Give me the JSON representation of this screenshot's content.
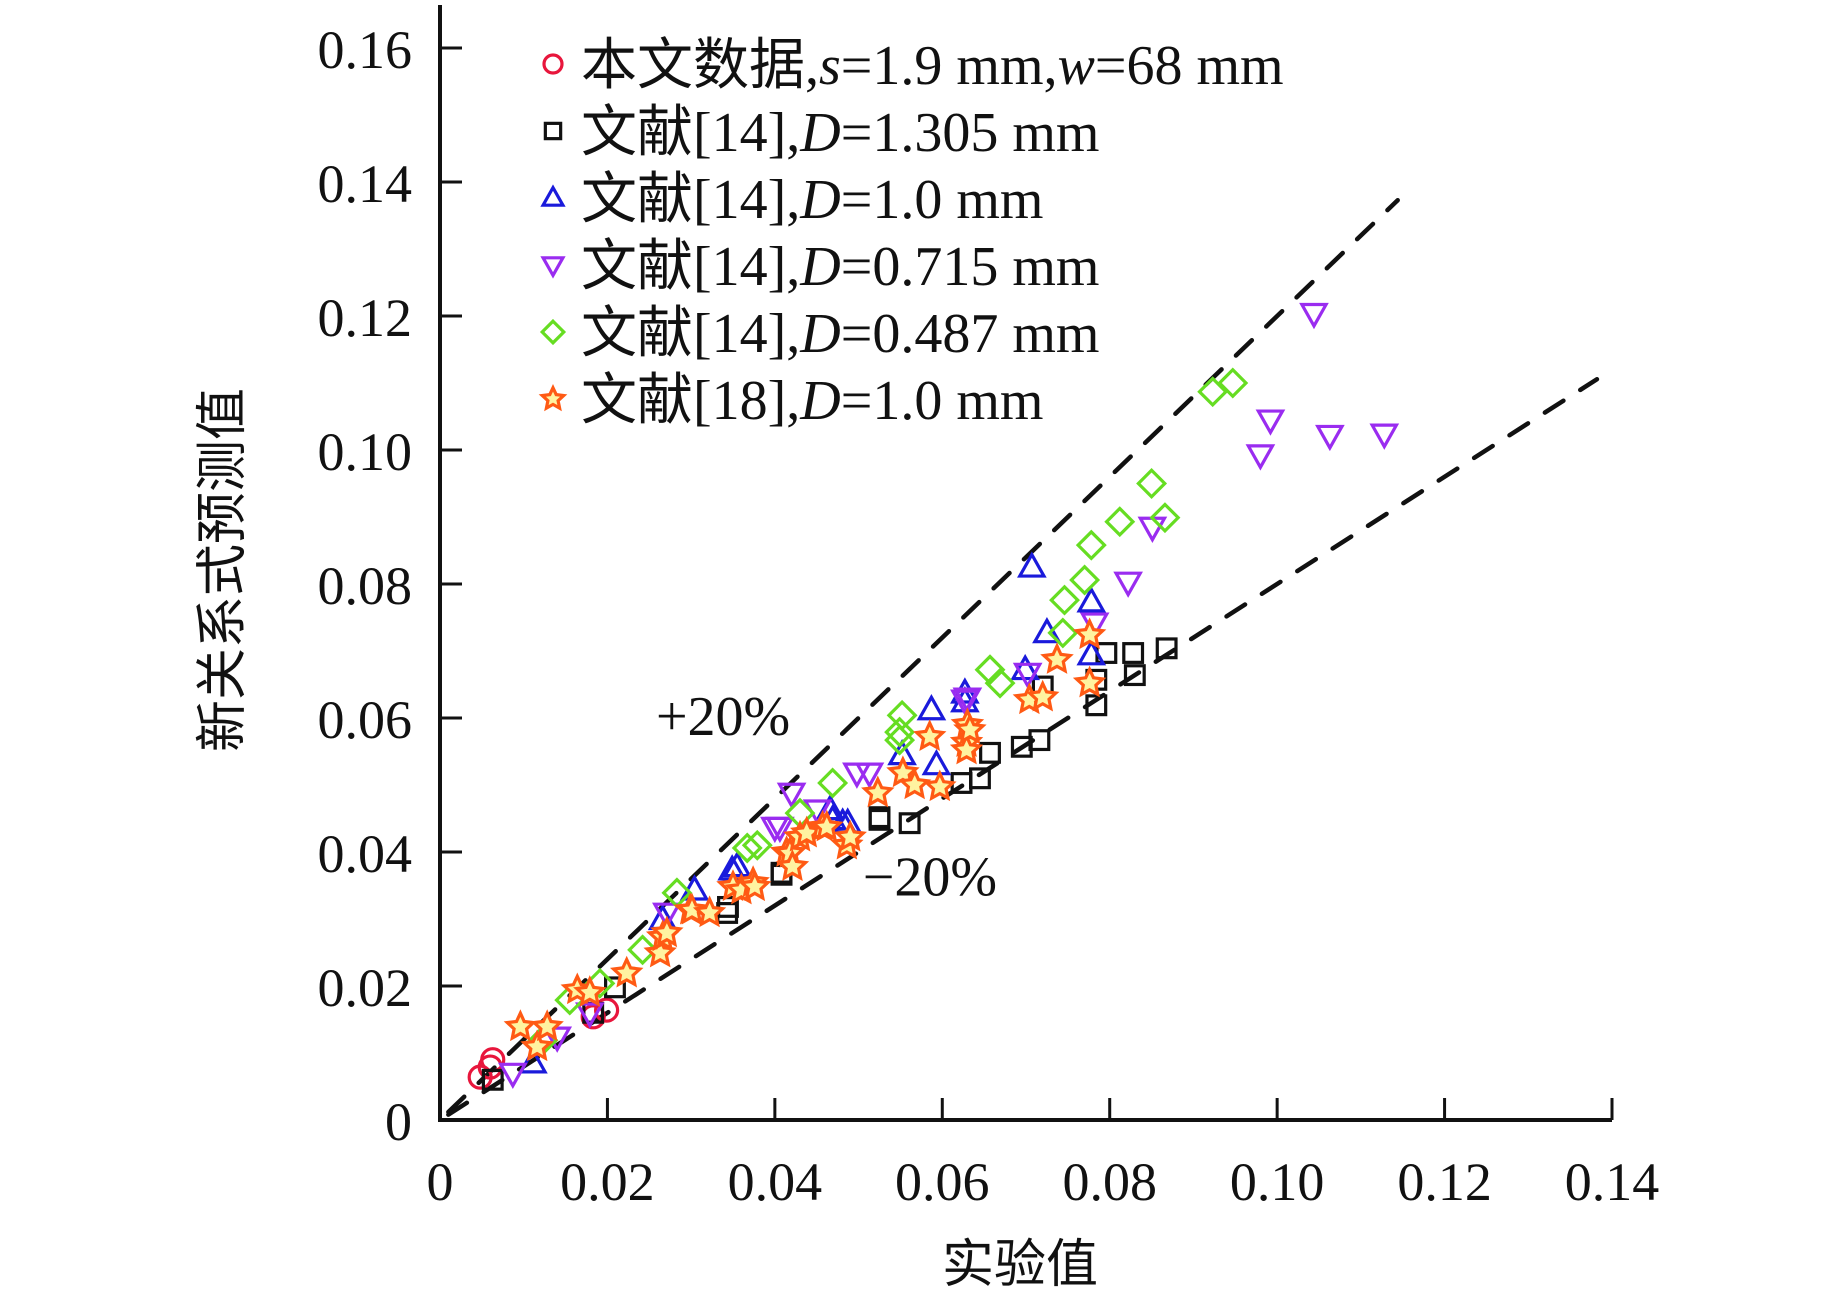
{
  "chart_data": {
    "type": "scatter",
    "title": "",
    "xlabel": "实验值",
    "ylabel": "新关系式预测值",
    "xlim": [
      0,
      0.14
    ],
    "ylim": [
      0,
      0.16
    ],
    "xticks": [
      "0",
      "0.02",
      "0.04",
      "0.06",
      "0.08",
      "0.10",
      "0.12",
      "0.14"
    ],
    "xtick_values": [
      0,
      0.02,
      0.04,
      0.06,
      0.08,
      0.1,
      0.12,
      0.14
    ],
    "yticks": [
      "0",
      "0.02",
      "0.04",
      "0.06",
      "0.08",
      "0.10",
      "0.12",
      "0.14",
      "0.16"
    ],
    "ytick_values": [
      0,
      0.02,
      0.04,
      0.06,
      0.08,
      0.1,
      0.12,
      0.14,
      0.16
    ],
    "grid": false,
    "legend_position": "top-left",
    "reference_lines": [
      {
        "name": "+20%",
        "label": "+20%",
        "slope": 1.2,
        "x_range": [
          0.001,
          0.1144
        ],
        "style": "dashed",
        "color": "#111111"
      },
      {
        "name": "-20%",
        "label": "−20%",
        "slope": 0.8,
        "x_range": [
          0.001,
          0.1382
        ],
        "style": "dashed",
        "color": "#111111"
      }
    ],
    "series": [
      {
        "name": "本文数据,s=1.9 mm,w=68 mm",
        "label_parts": [
          {
            "t": "本文数据,"
          },
          {
            "t": "s",
            "i": true
          },
          {
            "t": "=1.9 mm,"
          },
          {
            "t": "w",
            "i": true
          },
          {
            "t": "=68 mm"
          }
        ],
        "marker": "circle",
        "color": "#e8163c",
        "points": [
          [
            0.0048,
            0.0064
          ],
          [
            0.006,
            0.0079
          ],
          [
            0.0063,
            0.009
          ],
          [
            0.0183,
            0.0154
          ],
          [
            0.0199,
            0.0164
          ]
        ]
      },
      {
        "name": "文献[14],D=1.305 mm",
        "label_parts": [
          {
            "t": "文献[14],"
          },
          {
            "t": "D",
            "i": true
          },
          {
            "t": "=1.305 mm"
          }
        ],
        "marker": "square",
        "color": "#111111",
        "points": [
          [
            0.0063,
            0.006
          ],
          [
            0.0183,
            0.016
          ],
          [
            0.0209,
            0.0198
          ],
          [
            0.0344,
            0.0318
          ],
          [
            0.0343,
            0.0309
          ],
          [
            0.0408,
            0.0369
          ],
          [
            0.0408,
            0.0366
          ],
          [
            0.0525,
            0.0452
          ],
          [
            0.0561,
            0.0443
          ],
          [
            0.0525,
            0.0448
          ],
          [
            0.0623,
            0.0503
          ],
          [
            0.0645,
            0.051
          ],
          [
            0.0657,
            0.0548
          ],
          [
            0.0695,
            0.0557
          ],
          [
            0.0716,
            0.0567
          ],
          [
            0.072,
            0.0647
          ],
          [
            0.0784,
            0.0619
          ],
          [
            0.0784,
            0.0657
          ],
          [
            0.0796,
            0.0697
          ],
          [
            0.083,
            0.0664
          ],
          [
            0.0828,
            0.0697
          ],
          [
            0.0868,
            0.0704
          ]
        ]
      },
      {
        "name": "文献[14],D=1.0 mm",
        "label_parts": [
          {
            "t": "文献[14],"
          },
          {
            "t": "D",
            "i": true
          },
          {
            "t": "=1.0 mm"
          }
        ],
        "marker": "triangle-up",
        "color": "#1a1adb",
        "points": [
          [
            0.0111,
            0.0085
          ],
          [
            0.0266,
            0.0299
          ],
          [
            0.0304,
            0.0343
          ],
          [
            0.0349,
            0.0373
          ],
          [
            0.0355,
            0.0378
          ],
          [
            0.0466,
            0.0463
          ],
          [
            0.0469,
            0.0448
          ],
          [
            0.0481,
            0.0443
          ],
          [
            0.0487,
            0.0443
          ],
          [
            0.0552,
            0.0545
          ],
          [
            0.0587,
            0.0612
          ],
          [
            0.0593,
            0.053
          ],
          [
            0.0627,
            0.0624
          ],
          [
            0.0627,
            0.0637
          ],
          [
            0.0699,
            0.0672
          ],
          [
            0.0707,
            0.0825
          ],
          [
            0.0725,
            0.0727
          ],
          [
            0.0778,
            0.0773
          ],
          [
            0.0778,
            0.0694
          ]
        ]
      },
      {
        "name": "文献[14],D=0.715 mm",
        "label_parts": [
          {
            "t": "文献[14],"
          },
          {
            "t": "D",
            "i": true
          },
          {
            "t": "=0.715 mm"
          }
        ],
        "marker": "triangle-down",
        "color": "#9a2cf0",
        "points": [
          [
            0.0087,
            0.007
          ],
          [
            0.014,
            0.0124
          ],
          [
            0.0179,
            0.016
          ],
          [
            0.0271,
            0.0309
          ],
          [
            0.04,
            0.0437
          ],
          [
            0.0406,
            0.0437
          ],
          [
            0.042,
            0.0488
          ],
          [
            0.0451,
            0.0463
          ],
          [
            0.0498,
            0.0518
          ],
          [
            0.0513,
            0.0518
          ],
          [
            0.063,
            0.063
          ],
          [
            0.0627,
            0.0627
          ],
          [
            0.0702,
            0.0667
          ],
          [
            0.0782,
            0.0742
          ],
          [
            0.0822,
            0.0803
          ],
          [
            0.0851,
            0.0885
          ],
          [
            0.098,
            0.0993
          ],
          [
            0.0992,
            0.1045
          ],
          [
            0.1063,
            0.1022
          ],
          [
            0.1128,
            0.1024
          ],
          [
            0.1044,
            0.1204
          ]
        ]
      },
      {
        "name": "文献[14],D=0.487 mm",
        "label_parts": [
          {
            "t": "文献[14],"
          },
          {
            "t": "D",
            "i": true
          },
          {
            "t": "=0.487 mm"
          }
        ],
        "marker": "diamond",
        "color": "#66dd22",
        "points": [
          [
            0.0123,
            0.0119
          ],
          [
            0.0155,
            0.0179
          ],
          [
            0.0191,
            0.0204
          ],
          [
            0.0242,
            0.0254
          ],
          [
            0.0283,
            0.0339
          ],
          [
            0.0367,
            0.0406
          ],
          [
            0.0379,
            0.041
          ],
          [
            0.043,
            0.0458
          ],
          [
            0.0469,
            0.0503
          ],
          [
            0.0549,
            0.0567
          ],
          [
            0.0549,
            0.0579
          ],
          [
            0.0552,
            0.0604
          ],
          [
            0.0657,
            0.0672
          ],
          [
            0.0669,
            0.0652
          ],
          [
            0.0744,
            0.0727
          ],
          [
            0.0746,
            0.0776
          ],
          [
            0.077,
            0.0806
          ],
          [
            0.0778,
            0.0858
          ],
          [
            0.0812,
            0.0893
          ],
          [
            0.085,
            0.095
          ],
          [
            0.0866,
            0.0899
          ],
          [
            0.0923,
            0.1087
          ],
          [
            0.0947,
            0.11
          ]
        ]
      },
      {
        "name": "文献[18],D=1.0 mm",
        "label_parts": [
          {
            "t": "文献[18],"
          },
          {
            "t": "D",
            "i": true
          },
          {
            "t": "=1.0 mm"
          }
        ],
        "marker": "star",
        "color": "#ff5a14",
        "points": [
          [
            0.0096,
            0.0139
          ],
          [
            0.0116,
            0.0109
          ],
          [
            0.0128,
            0.0139
          ],
          [
            0.0164,
            0.0194
          ],
          [
            0.0179,
            0.019
          ],
          [
            0.0223,
            0.0219
          ],
          [
            0.0263,
            0.0249
          ],
          [
            0.0266,
            0.0273
          ],
          [
            0.0271,
            0.0279
          ],
          [
            0.0299,
            0.0313
          ],
          [
            0.0301,
            0.0313
          ],
          [
            0.0322,
            0.0309
          ],
          [
            0.035,
            0.0348
          ],
          [
            0.036,
            0.0343
          ],
          [
            0.0374,
            0.0354
          ],
          [
            0.0376,
            0.0348
          ],
          [
            0.0414,
            0.0399
          ],
          [
            0.0418,
            0.0398
          ],
          [
            0.0421,
            0.0378
          ],
          [
            0.043,
            0.0422
          ],
          [
            0.0438,
            0.0428
          ],
          [
            0.0457,
            0.0437
          ],
          [
            0.0462,
            0.0437
          ],
          [
            0.0486,
            0.041
          ],
          [
            0.049,
            0.0422
          ],
          [
            0.0523,
            0.0488
          ],
          [
            0.0553,
            0.0518
          ],
          [
            0.0567,
            0.05
          ],
          [
            0.0585,
            0.0572
          ],
          [
            0.0597,
            0.0497
          ],
          [
            0.0629,
            0.0563
          ],
          [
            0.063,
            0.059
          ],
          [
            0.0629,
            0.0552
          ],
          [
            0.0633,
            0.0582
          ],
          [
            0.0704,
            0.0627
          ],
          [
            0.072,
            0.0631
          ],
          [
            0.0737,
            0.0687
          ],
          [
            0.0776,
            0.0724
          ],
          [
            0.0776,
            0.0652
          ]
        ]
      }
    ],
    "annotations": [
      {
        "text": "+20%",
        "x": 0.0258,
        "y": 0.0575
      },
      {
        "text": "−20%",
        "x": 0.0505,
        "y": 0.0335
      }
    ]
  }
}
